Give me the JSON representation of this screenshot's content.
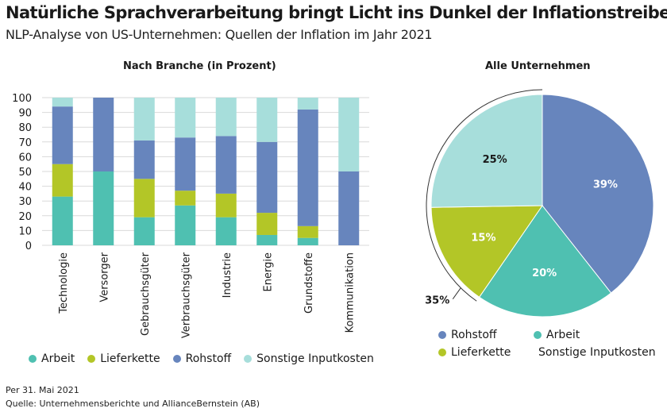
{
  "header": {
    "title": "Natürliche Sprachverarbeitung bringt Licht ins Dunkel der Inflationstreiber",
    "subtitle": "NLP-Analyse von US-Unternehmen: Quellen der Inflation im Jahr 2021"
  },
  "colors": {
    "Arbeit": "#4fc0b1",
    "Lieferkette": "#b3c627",
    "Rohstoff": "#6785bd",
    "Sonstige Inputkosten": "#a7dedb"
  },
  "chart_data": [
    {
      "type": "bar",
      "stacked": true,
      "title": "Nach Branche (in Prozent)",
      "categories": [
        "Technologie",
        "Versorger",
        "Gebrauchsgüter",
        "Verbrauchsgüter",
        "Industrie",
        "Energie",
        "Grundstoffe",
        "Kommunikation"
      ],
      "series": [
        {
          "name": "Arbeit",
          "values": [
            33,
            50,
            19,
            27,
            19,
            7,
            5,
            0
          ]
        },
        {
          "name": "Lieferkette",
          "values": [
            22,
            0,
            26,
            10,
            16,
            15,
            8,
            0
          ]
        },
        {
          "name": "Rohstoff",
          "values": [
            39,
            50,
            26,
            36,
            39,
            48,
            79,
            50
          ]
        },
        {
          "name": "Sonstige Inputkosten",
          "values": [
            6,
            0,
            29,
            27,
            26,
            30,
            8,
            50
          ]
        }
      ],
      "yticks": [
        0,
        10,
        20,
        30,
        40,
        50,
        60,
        70,
        80,
        90,
        100
      ],
      "ylim": [
        0,
        100
      ],
      "xlabel": "",
      "ylabel": "",
      "legend": [
        "Arbeit",
        "Lieferkette",
        "Rohstoff",
        "Sonstige Inputkosten"
      ],
      "legend_position": "bottom"
    },
    {
      "type": "pie",
      "title": "Alle Unternehmen",
      "slices": [
        {
          "name": "Rohstoff",
          "value": 39,
          "label": "39%"
        },
        {
          "name": "Arbeit",
          "value": 20,
          "label": "20%"
        },
        {
          "name": "Lieferkette",
          "value": 15,
          "label": "15%"
        },
        {
          "name": "Sonstige Inputkosten",
          "value": 25,
          "label": "25%"
        }
      ],
      "bracket_label": "35%",
      "legend": [
        "Rohstoff",
        "Arbeit",
        "Lieferkette",
        "Sonstige Inputkosten"
      ],
      "legend_position": "bottom"
    }
  ],
  "footer": {
    "date": "Per 31. Mai 2021",
    "source": "Quelle: Unternehmensberichte und AllianceBernstein (AB)"
  }
}
